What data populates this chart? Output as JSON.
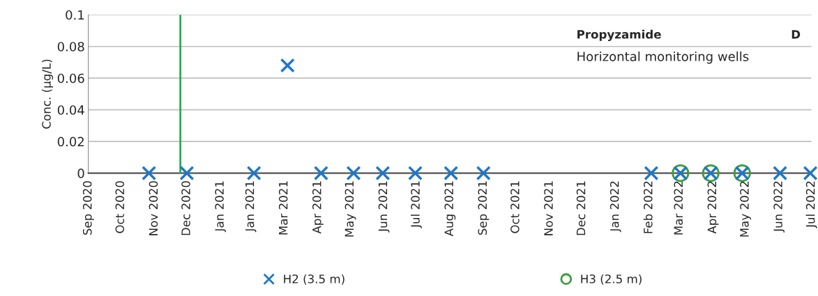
{
  "chart_data": {
    "type": "scatter",
    "ylabel": "Conc. (µg/L)",
    "annotations": [
      "Propyzamide",
      "Horizontal monitoring wells",
      "D"
    ],
    "xlim": [
      "2020-09-01",
      "2022-07-01"
    ],
    "xticks": [
      {
        "value": "2020-09-01",
        "label": "Sep 2020"
      },
      {
        "value": "2020-10-01",
        "label": "Oct 2020"
      },
      {
        "value": "2020-11-01",
        "label": "Nov 2020"
      },
      {
        "value": "2020-12-01",
        "label": "Dec 2020"
      },
      {
        "value": "2021-01-01",
        "label": "Jan 2021"
      },
      {
        "value": "2021-01-29",
        "label": "Jan 2021"
      },
      {
        "value": "2021-03-01",
        "label": "Mar 2021"
      },
      {
        "value": "2021-04-01",
        "label": "Apr 2021"
      },
      {
        "value": "2021-05-01",
        "label": "May 2021"
      },
      {
        "value": "2021-06-01",
        "label": "Jun 2021"
      },
      {
        "value": "2021-07-01",
        "label": "Jul 2021"
      },
      {
        "value": "2021-08-01",
        "label": "Aug 2021"
      },
      {
        "value": "2021-09-01",
        "label": "Sep 2021"
      },
      {
        "value": "2021-10-01",
        "label": "Oct 2021"
      },
      {
        "value": "2021-11-01",
        "label": "Nov 2021"
      },
      {
        "value": "2021-12-01",
        "label": "Dec 2021"
      },
      {
        "value": "2022-01-01",
        "label": "Jan 2022"
      },
      {
        "value": "2022-02-01",
        "label": "Feb 2022"
      },
      {
        "value": "2022-03-01",
        "label": "Mar 2022"
      },
      {
        "value": "2022-04-01",
        "label": "Apr 2022"
      },
      {
        "value": "2022-05-01",
        "label": "May 2022"
      },
      {
        "value": "2022-06-01",
        "label": "Jun 2022"
      },
      {
        "value": "2022-07-01",
        "label": "Jul 2022"
      }
    ],
    "ylim": [
      0,
      0.1
    ],
    "yticks": [
      0,
      0.02,
      0.04,
      0.06,
      0.08,
      {
        "value": 0.1,
        "label": "0.1"
      }
    ],
    "grid": "y",
    "legend": "bottom",
    "ref_lines": [
      {
        "axis": "x",
        "value": "2020-11-25",
        "color": "#22b14c"
      }
    ],
    "series": [
      {
        "name": "H2 (3.5 m)",
        "color": "#1f77c8",
        "marker": "cross",
        "x": [
          "2020-10-27",
          "2020-12-01",
          "2021-02-01",
          "2021-03-04",
          "2021-04-04",
          "2021-05-04",
          "2021-05-31",
          "2021-06-30",
          "2021-08-02",
          "2021-09-01",
          "2022-02-03",
          "2022-03-02",
          "2022-03-30",
          "2022-04-28",
          "2022-06-02",
          "2022-06-30"
        ],
        "values": [
          0,
          0,
          0,
          0.068,
          0,
          0,
          0,
          0,
          0,
          0,
          0,
          0,
          0,
          0,
          0,
          0
        ]
      },
      {
        "name": "H3 (2.5 m)",
        "color": "#3a9d3a",
        "marker": "circle",
        "x": [
          "2022-03-02",
          "2022-03-30",
          "2022-04-28"
        ],
        "values": [
          0,
          0,
          0
        ]
      }
    ]
  }
}
